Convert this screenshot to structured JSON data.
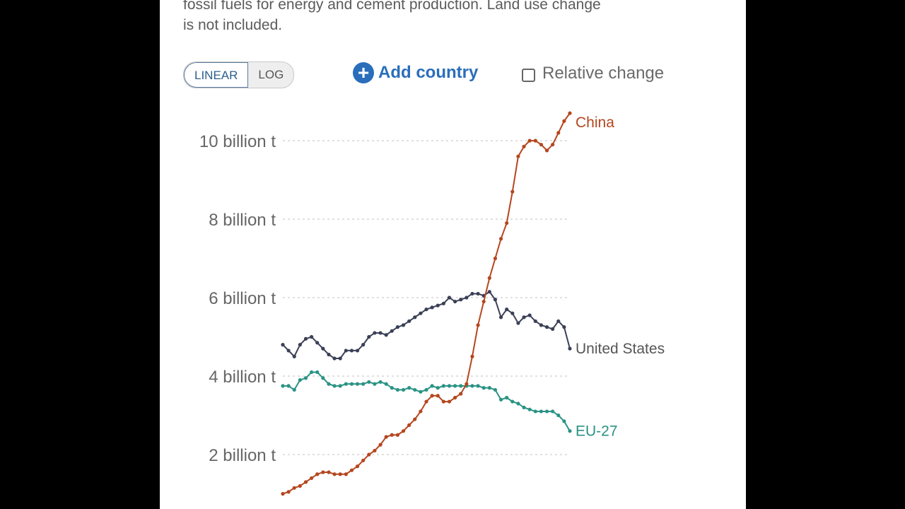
{
  "description": "fossil fuels for energy and cement production. Land use change is not included.",
  "controls": {
    "scale_options": [
      "LINEAR",
      "LOG"
    ],
    "selected_scale": "LINEAR",
    "add_country_label": "Add country",
    "add_icon": "plus-circle-icon",
    "relative_change_label": "Relative change",
    "relative_change_checked": false
  },
  "chart_data": {
    "type": "line",
    "title": "",
    "xlabel": "",
    "ylabel": "",
    "ylim": [
      1,
      11
    ],
    "grid": true,
    "y_ticks": [
      {
        "value": 2,
        "label": "2 billion t"
      },
      {
        "value": 4,
        "label": "4 billion t"
      },
      {
        "value": 6,
        "label": "6 billion t"
      },
      {
        "value": 8,
        "label": "8 billion t"
      },
      {
        "value": 10,
        "label": "10 billion t"
      }
    ],
    "legend_placement": "inline-right",
    "series": [
      {
        "name": "China",
        "color": "#b5461f",
        "values": [
          1.0,
          1.05,
          1.15,
          1.2,
          1.3,
          1.4,
          1.5,
          1.55,
          1.55,
          1.5,
          1.5,
          1.5,
          1.6,
          1.7,
          1.85,
          2.0,
          2.1,
          2.25,
          2.45,
          2.5,
          2.5,
          2.6,
          2.75,
          2.9,
          3.1,
          3.35,
          3.5,
          3.5,
          3.35,
          3.35,
          3.45,
          3.55,
          3.8,
          4.5,
          5.3,
          5.9,
          6.5,
          7.0,
          7.5,
          7.9,
          8.7,
          9.6,
          9.85,
          10.0,
          10.0,
          9.9,
          9.75,
          9.9,
          10.2,
          10.5,
          10.7
        ]
      },
      {
        "name": "United States",
        "color": "#3b4057",
        "values": [
          4.8,
          4.65,
          4.5,
          4.8,
          4.95,
          5.0,
          4.85,
          4.7,
          4.55,
          4.45,
          4.45,
          4.65,
          4.65,
          4.65,
          4.8,
          5.0,
          5.1,
          5.1,
          5.05,
          5.15,
          5.25,
          5.3,
          5.4,
          5.5,
          5.6,
          5.7,
          5.75,
          5.8,
          5.85,
          6.0,
          5.9,
          5.95,
          6.0,
          6.1,
          6.1,
          6.05,
          6.15,
          5.95,
          5.5,
          5.7,
          5.6,
          5.35,
          5.5,
          5.55,
          5.4,
          5.3,
          5.25,
          5.2,
          5.4,
          5.25,
          4.7
        ]
      },
      {
        "name": "EU-27",
        "color": "#2a9384",
        "values": [
          3.75,
          3.75,
          3.65,
          3.9,
          3.95,
          4.1,
          4.1,
          3.95,
          3.8,
          3.75,
          3.75,
          3.8,
          3.8,
          3.8,
          3.8,
          3.85,
          3.8,
          3.85,
          3.8,
          3.7,
          3.65,
          3.65,
          3.7,
          3.65,
          3.6,
          3.65,
          3.75,
          3.7,
          3.75,
          3.75,
          3.75,
          3.75,
          3.75,
          3.75,
          3.75,
          3.7,
          3.7,
          3.65,
          3.4,
          3.45,
          3.35,
          3.3,
          3.2,
          3.15,
          3.1,
          3.1,
          3.1,
          3.1,
          3.0,
          2.85,
          2.6
        ]
      }
    ]
  }
}
